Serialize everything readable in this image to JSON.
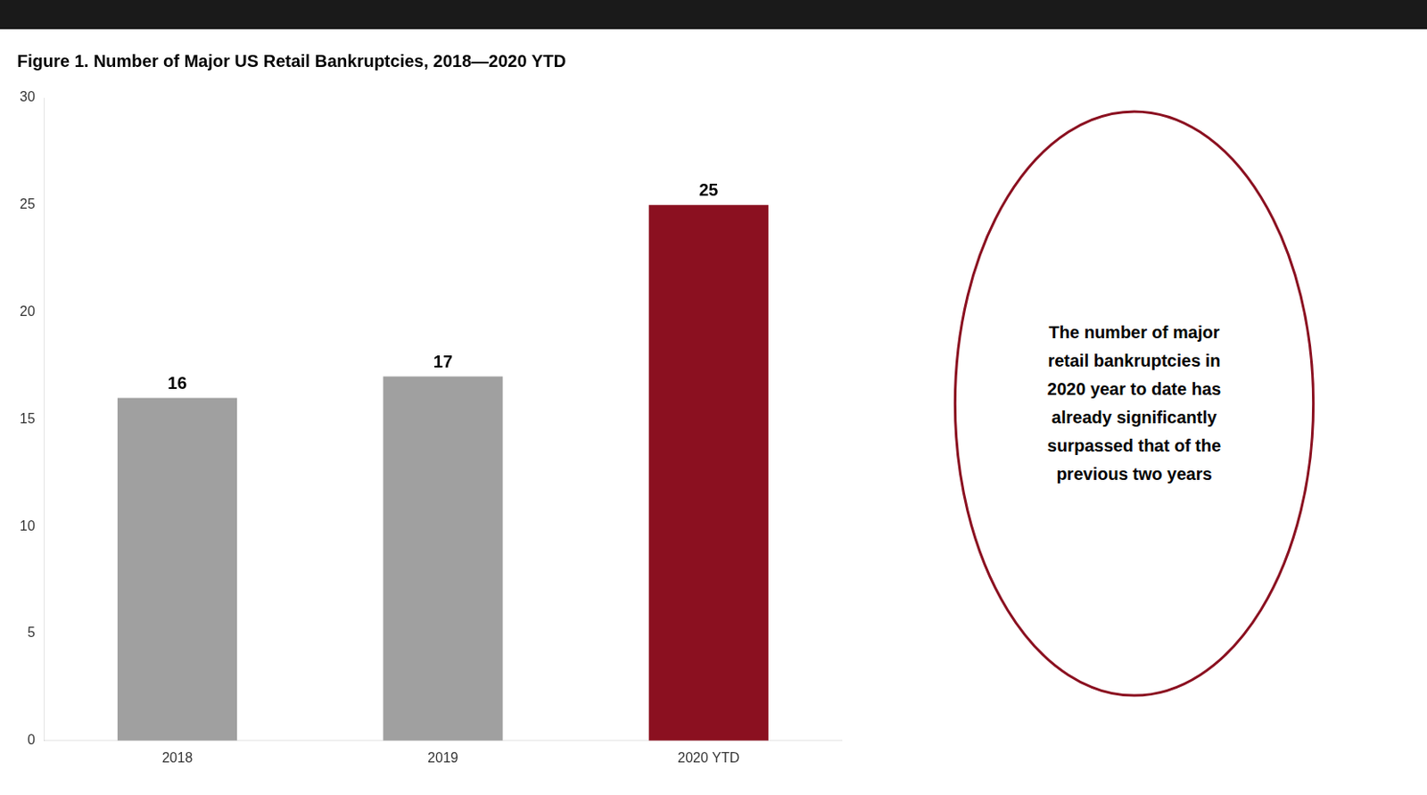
{
  "chart_data": {
    "type": "bar",
    "title": "Figure 1. Number of Major US Retail Bankruptcies, 2018—2020 YTD",
    "categories": [
      "2018",
      "2019",
      "2020 YTD"
    ],
    "values": [
      16,
      17,
      25
    ],
    "colors": [
      "#a0a0a0",
      "#a0a0a0",
      "#8b1020"
    ],
    "ylim": [
      0,
      30
    ],
    "yticks": [
      0,
      5,
      10,
      15,
      20,
      25,
      30
    ],
    "grid": false,
    "data_labels": true,
    "annotation": "The number of major\nretail bankruptcies in\n2020 year to date has\nalready significantly\nsurpassed that of the\nprevious two years"
  }
}
